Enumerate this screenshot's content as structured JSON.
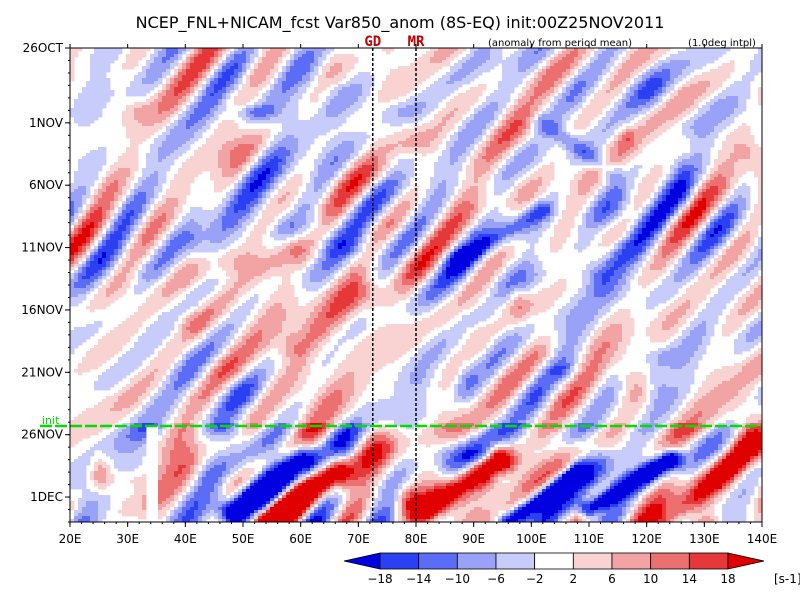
{
  "chart_data": {
    "type": "heatmap",
    "title": "NCEP_FNL+NICAM_fcst Var850_anom (8S-EQ) init:00Z25NOV2011",
    "subtitle_left": "(anomaly from period mean)",
    "subtitle_right": "(1.0deg intpl)",
    "x_axis": {
      "range": [
        20,
        140
      ],
      "ticks": [
        {
          "value": 20,
          "label": "20E"
        },
        {
          "value": 30,
          "label": "30E"
        },
        {
          "value": 40,
          "label": "40E"
        },
        {
          "value": 50,
          "label": "50E"
        },
        {
          "value": 60,
          "label": "60E"
        },
        {
          "value": 70,
          "label": "70E"
        },
        {
          "value": 80,
          "label": "80E"
        },
        {
          "value": 90,
          "label": "90E"
        },
        {
          "value": 100,
          "label": "100E"
        },
        {
          "value": 110,
          "label": "110E"
        },
        {
          "value": 120,
          "label": "120E"
        },
        {
          "value": 130,
          "label": "130E"
        },
        {
          "value": 140,
          "label": "140E"
        }
      ]
    },
    "y_axis": {
      "start": "26OCT",
      "end": "3DEC",
      "inverted": true,
      "ticks": [
        {
          "day": 0,
          "label": "26OCT"
        },
        {
          "day": 6,
          "label": "1NOV"
        },
        {
          "day": 11,
          "label": "6NOV"
        },
        {
          "day": 16,
          "label": "11NOV"
        },
        {
          "day": 21,
          "label": "16NOV"
        },
        {
          "day": 26,
          "label": "21NOV"
        },
        {
          "day": 31,
          "label": "26NOV"
        },
        {
          "day": 36,
          "label": "1DEC"
        }
      ],
      "total_days": 38
    },
    "markers": [
      {
        "label": "GD",
        "lon": 72.5
      },
      {
        "label": "MR",
        "lon": 80
      }
    ],
    "init_line": {
      "label": "init",
      "day": 30
    },
    "colorbar": {
      "levels": [
        -18,
        -14,
        -10,
        -6,
        -2,
        2,
        6,
        10,
        14,
        18
      ],
      "colors": [
        "#0000e0",
        "#2b40f2",
        "#5b6cf6",
        "#9aa2f8",
        "#c8ccfa",
        "#ffffff",
        "#f9d2d2",
        "#f2a3a3",
        "#ec7070",
        "#e63838",
        "#e00000"
      ],
      "unit": "[s-1]"
    },
    "bands": [
      {
        "lon0": 44,
        "day0": 16,
        "lon1": 62,
        "day1": 3,
        "w": 4,
        "sign": -1,
        "a": 10
      },
      {
        "lon0": 42,
        "day0": 22,
        "lon1": 58,
        "day1": 16,
        "w": 3,
        "sign": 1,
        "a": 10
      },
      {
        "lon0": 60,
        "day0": 24,
        "lon1": 70,
        "day1": 20,
        "w": 4,
        "sign": 1,
        "a": 14
      },
      {
        "lon0": 88,
        "day0": 17,
        "lon1": 102,
        "day1": 13,
        "w": 2,
        "sign": -1,
        "a": 12
      },
      {
        "lon0": 102,
        "day0": 6,
        "lon1": 114,
        "day1": 10,
        "w": 2,
        "sign": -1,
        "a": 10
      },
      {
        "lon0": 112,
        "day0": 18,
        "lon1": 126,
        "day1": 12,
        "w": 3,
        "sign": -1,
        "a": 8
      },
      {
        "lon0": 48,
        "day0": 37,
        "lon1": 60,
        "day1": 33,
        "w": 3,
        "sign": -1,
        "a": 18
      },
      {
        "lon0": 54,
        "day0": 38,
        "lon1": 66,
        "day1": 34,
        "w": 3,
        "sign": 1,
        "a": 18
      },
      {
        "lon0": 82,
        "day0": 37,
        "lon1": 94,
        "day1": 33,
        "w": 3,
        "sign": 1,
        "a": 18
      },
      {
        "lon0": 96,
        "day0": 38,
        "lon1": 108,
        "day1": 34,
        "w": 2,
        "sign": -1,
        "a": 18
      },
      {
        "lon0": 110,
        "day0": 37,
        "lon1": 124,
        "day1": 33,
        "w": 2,
        "sign": -1,
        "a": 18
      },
      {
        "lon0": 124,
        "day0": 38,
        "lon1": 138,
        "day1": 32,
        "w": 3,
        "sign": 1,
        "a": 14
      }
    ],
    "missing_region": {
      "lon0": 33,
      "lon1": 35.2,
      "day0": 30.2,
      "day1": 38
    }
  }
}
